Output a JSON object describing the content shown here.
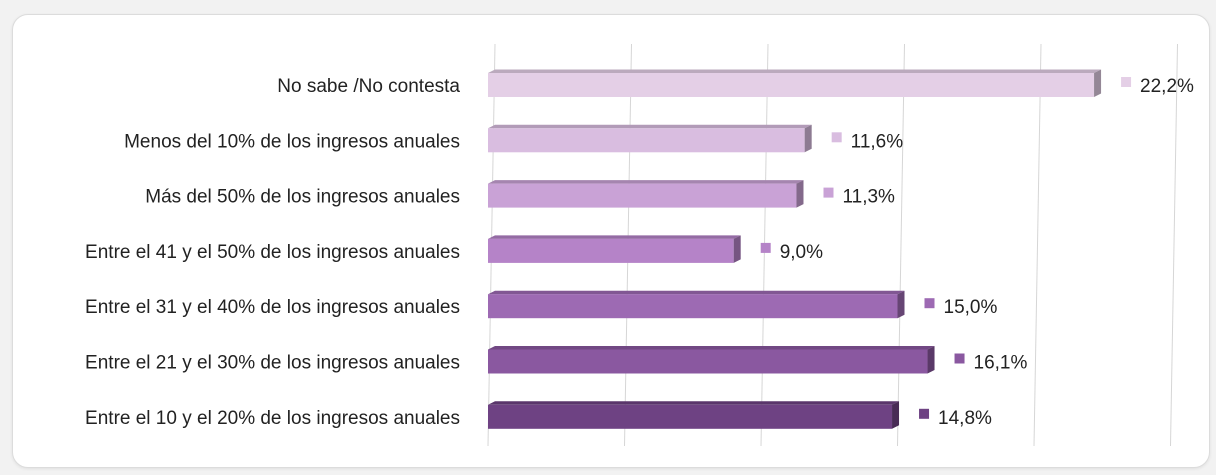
{
  "chart_data": {
    "type": "bar",
    "orientation": "horizontal",
    "categories": [
      "No sabe /No contesta",
      "Menos del 10% de los ingresos anuales",
      "Más del 50% de los ingresos anuales",
      "Entre el 41 y el 50% de los ingresos anuales",
      "Entre el 31 y el 40% de los ingresos anuales",
      "Entre el 21 y el 30% de los ingresos anuales",
      "Entre el 10 y el 20% de los ingresos anuales"
    ],
    "values": [
      22.2,
      11.6,
      11.3,
      9.0,
      15.0,
      16.1,
      14.8
    ],
    "value_labels": [
      "22,2%",
      "11,6%",
      "11,3%",
      "9,0%",
      "15,0%",
      "16,1%",
      "14,8%"
    ],
    "colors": [
      "#e4cfe6",
      "#d9bde0",
      "#c9a2d6",
      "#b583c8",
      "#9d6ab3",
      "#8a58a0",
      "#6e4283"
    ],
    "xlim": [
      0,
      25
    ],
    "grid": true,
    "title": "",
    "xlabel": "",
    "ylabel": ""
  }
}
